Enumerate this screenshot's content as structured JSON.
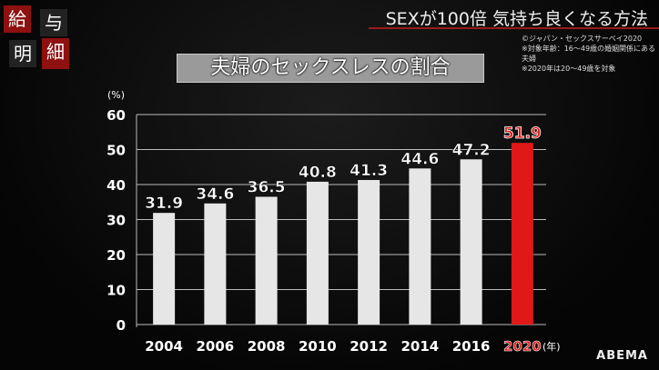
{
  "logo": {
    "chars": [
      "給",
      "与",
      "明",
      "細"
    ]
  },
  "header": {
    "show_title": "SEXが100倍 気持ち良くなる方法",
    "notes": [
      "©ジャパン・セックスサーベイ2020",
      "※対象年齢：16〜49歳の婚姻関係にある夫婦",
      "※2020年は20〜49歳を対象"
    ]
  },
  "watermark": "ABEMA",
  "chart_data": {
    "type": "bar",
    "title": "夫婦のセックスレスの割合",
    "ylabel": "(%)",
    "xlabel": "(年)",
    "categories": [
      "2004",
      "2006",
      "2008",
      "2010",
      "2012",
      "2014",
      "2016",
      "2020"
    ],
    "values": [
      31.9,
      34.6,
      36.5,
      40.8,
      41.3,
      44.6,
      47.2,
      51.9
    ],
    "ylim": [
      0,
      60
    ],
    "yticks": [
      0,
      10,
      20,
      30,
      40,
      50,
      60
    ],
    "grid": true,
    "colors": {
      "bar": "#e6e6e6",
      "highlight": "#e01818"
    },
    "highlight_index": 7
  }
}
